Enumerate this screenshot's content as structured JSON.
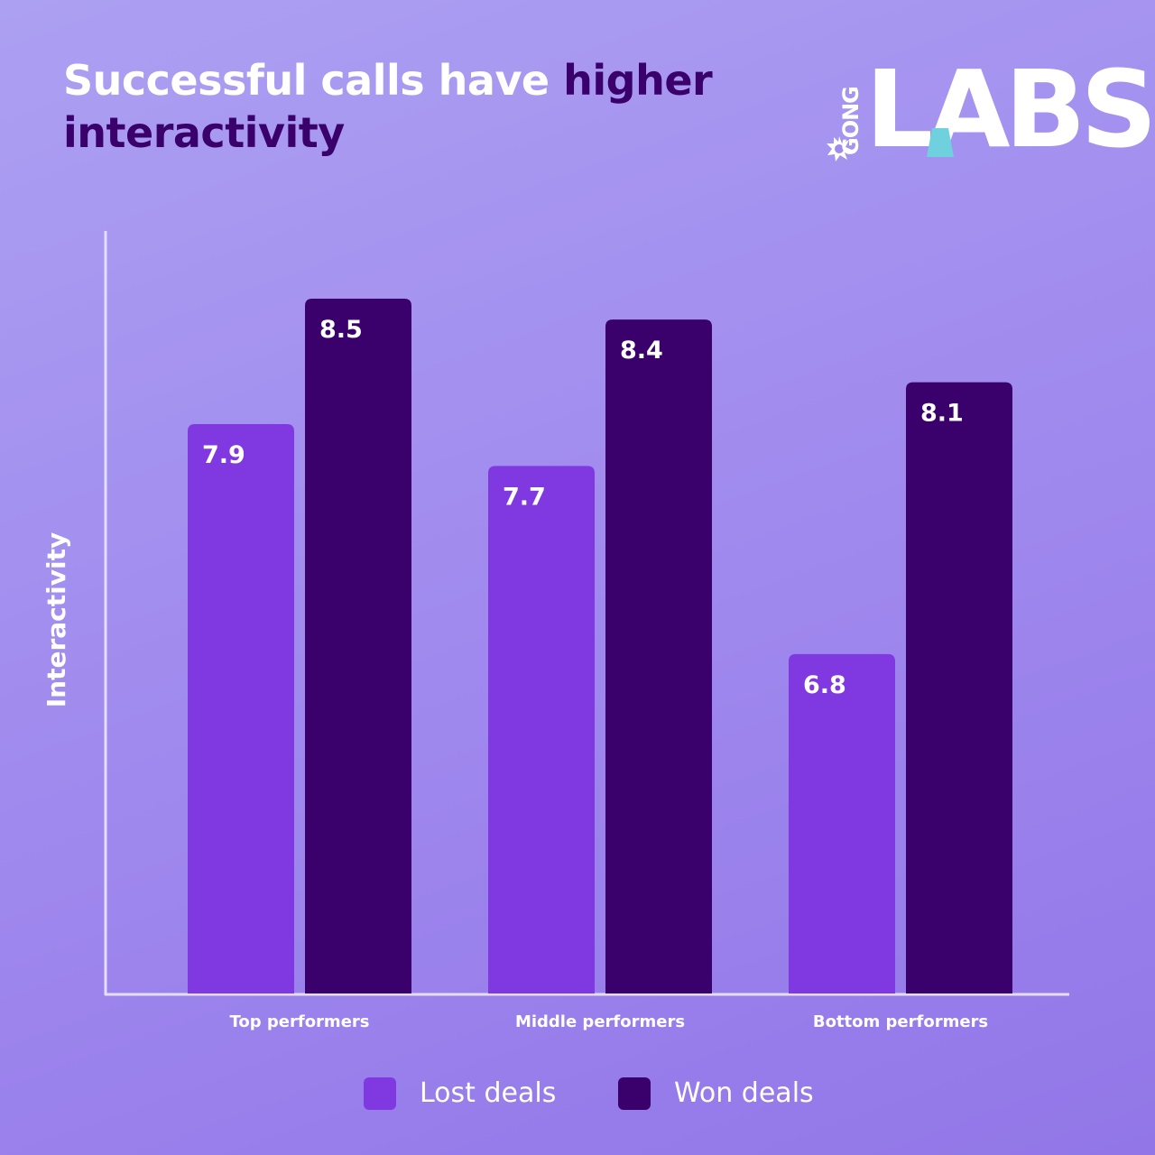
{
  "header": {
    "title_part1": "Successful calls have ",
    "title_highlight": "higher interactivity"
  },
  "logo": {
    "small_text": "GONG",
    "big_text": "LABS",
    "icon": "burst-icon"
  },
  "colors": {
    "lost": "#8039e0",
    "won": "#3a006c",
    "axis": "#e4defb",
    "text": "#ffffff"
  },
  "chart_data": {
    "type": "bar",
    "categories": [
      "Top performers",
      "Middle performers",
      "Bottom performers"
    ],
    "series": [
      {
        "name": "Lost deals",
        "values": [
          7.9,
          7.7,
          6.8
        ]
      },
      {
        "name": "Won deals",
        "values": [
          8.5,
          8.4,
          8.1
        ]
      }
    ],
    "ylabel": "Interactivity",
    "xlabel": "",
    "ylim": [
      0,
      10
    ],
    "grid": false,
    "legend": "bottom"
  }
}
